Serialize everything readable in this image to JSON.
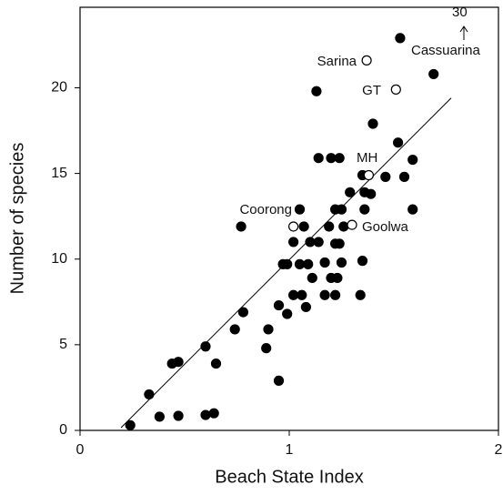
{
  "chart_data": {
    "type": "scatter",
    "xlabel": "Beach State Index",
    "ylabel": "Number of species",
    "xlim": [
      0,
      2
    ],
    "ylim": [
      0,
      24.7
    ],
    "xticks": [
      0,
      1,
      2
    ],
    "yticks": [
      0,
      5,
      10,
      15,
      20
    ],
    "series": [
      {
        "marker": "filled",
        "color": "#000000",
        "x": [
          0.24,
          0.33,
          0.38,
          0.44,
          0.47,
          0.47,
          0.6,
          0.6,
          0.64,
          0.65,
          0.74,
          0.78,
          0.77,
          0.95,
          0.89,
          0.9,
          0.95,
          0.97,
          0.99,
          0.99,
          1.02,
          1.02,
          1.05,
          1.07,
          1.05,
          1.06,
          1.08,
          1.09,
          1.1,
          1.11,
          1.14,
          1.13,
          1.14,
          1.17,
          1.17,
          1.19,
          1.2,
          1.22,
          1.2,
          1.22,
          1.22,
          1.23,
          1.24,
          1.24,
          1.25,
          1.25,
          1.26,
          1.29,
          1.34,
          1.35,
          1.35,
          1.36,
          1.36,
          1.39,
          1.4,
          1.46,
          1.52,
          1.53,
          1.55,
          1.59,
          1.59,
          1.69
        ],
        "values": [
          0.3,
          2.1,
          0.8,
          3.9,
          4.0,
          0.85,
          4.9,
          0.9,
          1.0,
          3.9,
          5.9,
          6.9,
          11.9,
          2.9,
          4.8,
          5.9,
          7.3,
          9.7,
          9.7,
          6.8,
          7.9,
          11.0,
          12.9,
          11.9,
          9.7,
          7.9,
          7.2,
          9.7,
          11.0,
          8.9,
          11.0,
          19.8,
          15.9,
          9.8,
          7.9,
          11.9,
          15.9,
          12.9,
          8.9,
          7.9,
          10.9,
          8.9,
          15.9,
          10.9,
          12.9,
          9.8,
          11.9,
          13.9,
          7.9,
          14.9,
          9.9,
          12.9,
          13.9,
          13.8,
          17.9,
          14.8,
          16.8,
          22.9,
          14.8,
          12.9,
          15.8,
          20.8
        ]
      },
      {
        "marker": "open",
        "color": "#000000",
        "x": [
          1.37,
          1.51,
          1.38,
          1.02,
          1.3
        ],
        "values": [
          21.6,
          19.9,
          14.9,
          11.9,
          12.0
        ]
      }
    ],
    "fit_line": {
      "x": [
        0.196,
        1.774
      ],
      "values": [
        0.16,
        19.4
      ]
    },
    "annotations": [
      "Sarina",
      "Cassuarina",
      "GT",
      "MH",
      "Coorong",
      "Goolwa",
      "30"
    ]
  }
}
